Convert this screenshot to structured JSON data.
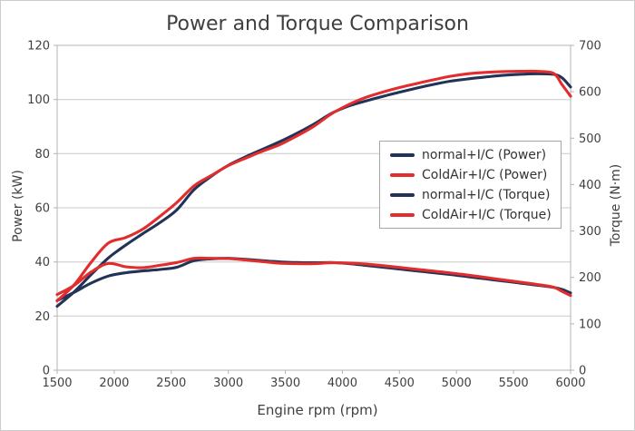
{
  "window": {
    "background": "#ffffff",
    "border_color": "#cccccc"
  },
  "chart_data": {
    "type": "line",
    "title": "Power and Torque Comparison",
    "xlabel": "Engine rpm (rpm)",
    "ylabel_left": "Power (kW)",
    "ylabel_right": "Torque (N·m)",
    "grid": "horizontal-only",
    "legend_position": "middle-right",
    "x_range": [
      1500,
      6000
    ],
    "y_left_range": [
      0,
      120
    ],
    "y_right_range": [
      0,
      700
    ],
    "x_ticks": [
      1500,
      2000,
      2500,
      3000,
      3500,
      4000,
      4500,
      5000,
      5500,
      6000
    ],
    "y_left_ticks": [
      0,
      20,
      40,
      60,
      80,
      100,
      120
    ],
    "y_right_ticks": [
      0,
      100,
      200,
      300,
      400,
      500,
      600,
      700
    ],
    "colors": {
      "normal": "#213457",
      "coldair": "#e12d2d",
      "grid": "#c9c9c9",
      "axis": "#b3b3b3",
      "text": "#404040"
    },
    "x": [
      1500,
      1650,
      1800,
      1950,
      2100,
      2250,
      2400,
      2550,
      2700,
      2850,
      3000,
      3150,
      3300,
      3450,
      3600,
      3750,
      3900,
      4050,
      4200,
      4350,
      4500,
      4650,
      4800,
      4950,
      5100,
      5250,
      5400,
      5550,
      5700,
      5850,
      5925,
      6000
    ],
    "series": [
      {
        "label": "normal+I/C (Power)",
        "axis": "left",
        "unit": "kW",
        "color_key": "normal",
        "values": [
          23.6,
          29.0,
          35.4,
          41.5,
          46.2,
          50.4,
          54.5,
          59.3,
          66.7,
          71.6,
          75.7,
          78.8,
          81.6,
          84.4,
          87.5,
          90.9,
          94.8,
          97.5,
          99.4,
          101.1,
          102.7,
          104.2,
          105.6,
          106.8,
          107.6,
          108.3,
          108.9,
          109.3,
          109.5,
          109.3,
          108.0,
          104.6
        ]
      },
      {
        "label": "ColdAir+I/C (Power)",
        "axis": "left",
        "unit": "kW",
        "color_key": "coldair",
        "values": [
          25.6,
          31.6,
          40.0,
          47.0,
          49.0,
          52.1,
          56.8,
          62.0,
          68.1,
          71.9,
          75.6,
          78.3,
          80.9,
          83.3,
          86.5,
          90.1,
          94.6,
          98.0,
          100.7,
          102.7,
          104.4,
          105.9,
          107.3,
          108.6,
          109.5,
          110.0,
          110.3,
          110.4,
          110.4,
          109.7,
          105.5,
          101.2
        ]
      },
      {
        "label": "normal+I/C (Torque)",
        "axis": "right",
        "unit": "N·m",
        "color_key": "normal",
        "values": [
          150,
          168,
          188,
          203,
          210,
          214,
          217,
          222,
          236,
          240,
          241,
          239,
          236,
          233.5,
          232,
          231.5,
          232,
          230,
          226,
          222,
          218,
          214,
          210,
          206,
          201.5,
          197,
          192.5,
          188,
          183.5,
          178.5,
          174,
          166.5
        ]
      },
      {
        "label": "ColdAir+I/C (Torque)",
        "axis": "right",
        "unit": "N·m",
        "color_key": "coldair",
        "values": [
          163,
          183,
          212,
          230,
          223,
          221,
          226,
          232,
          241,
          241,
          240.5,
          237.5,
          234,
          230.5,
          229.5,
          229.5,
          231.5,
          231,
          229,
          225.5,
          221.5,
          217.5,
          213.5,
          209.5,
          205,
          200,
          195,
          190,
          185,
          179,
          170,
          161
        ]
      }
    ]
  }
}
